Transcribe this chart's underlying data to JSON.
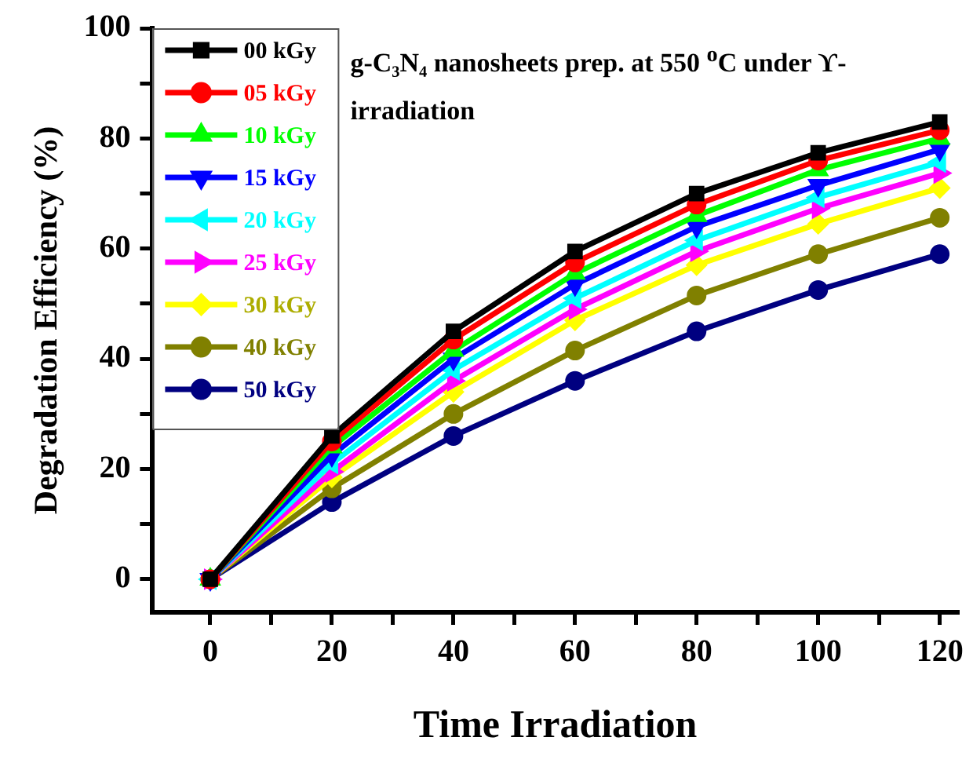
{
  "chart_data": {
    "type": "line",
    "xlabel": "Time Irradiation",
    "ylabel": "Degradation Efficiency (%)",
    "annotations": [
      "g-C₃N₄ nanosheets prep. at 550 $^{o}$C under ϒ-irradiation"
    ],
    "x": [
      0,
      20,
      40,
      60,
      80,
      100,
      120
    ],
    "xlim": [
      -9.5,
      123
    ],
    "ylim": [
      -6,
      100
    ],
    "xticks": [
      0,
      {
        "value": 10,
        "label": null
      },
      20,
      {
        "value": 30,
        "label": null
      },
      40,
      {
        "value": 50,
        "label": null
      },
      60,
      {
        "value": 70,
        "label": null
      },
      80,
      {
        "value": 90,
        "label": null
      },
      100,
      {
        "value": 110,
        "label": null
      },
      120
    ],
    "yticks": [
      0,
      {
        "value": 10,
        "label": null
      },
      20,
      {
        "value": 30,
        "label": null
      },
      40,
      {
        "value": 50,
        "label": null
      },
      60,
      {
        "value": 70,
        "label": null
      },
      80,
      {
        "value": 90,
        "label": null
      },
      100
    ],
    "grid": false,
    "legend": "top left",
    "line_style": "solid",
    "series": [
      {
        "name": "00 kGy",
        "color": "#000000",
        "marker": "square",
        "values": [
          0,
          26,
          45,
          59.5,
          70,
          77.4,
          83
        ]
      },
      {
        "name": "05 kGy",
        "color": "#ff0000",
        "marker": "circle",
        "values": [
          0,
          25,
          43.5,
          57.5,
          68,
          76,
          81.5
        ]
      },
      {
        "name": "10 kGy",
        "color": "#00ff00",
        "marker": "triangle",
        "values": [
          0,
          24,
          41.5,
          55.5,
          66,
          74.3,
          80
        ]
      },
      {
        "name": "15 kGy",
        "color": "#0000ff",
        "marker": "triangle-down",
        "values": [
          0,
          22.5,
          40,
          53.5,
          64,
          71.5,
          78
        ]
      },
      {
        "name": "20 kGy",
        "color": "#00ffff",
        "marker": "triangle-left",
        "values": [
          0,
          21,
          38,
          51,
          61.5,
          69.3,
          75.7
        ]
      },
      {
        "name": "25 kGy",
        "color": "#ff00ff",
        "marker": "triangle-right",
        "values": [
          0,
          19.5,
          36,
          49,
          59.5,
          67.3,
          73.7
        ]
      },
      {
        "name": "30 kGy",
        "color": "#ffff00",
        "marker": "diamond",
        "values": [
          0,
          18.5,
          34,
          47,
          57,
          64.5,
          71
        ]
      },
      {
        "name": "40 kGy",
        "color": "#808000",
        "marker": "circle",
        "values": [
          0,
          16.5,
          30,
          41.5,
          51.5,
          59,
          65.6
        ]
      },
      {
        "name": "50 kGy",
        "color": "#000080",
        "marker": "circle",
        "values": [
          0,
          14,
          26,
          36,
          45,
          52.5,
          59
        ]
      }
    ]
  }
}
